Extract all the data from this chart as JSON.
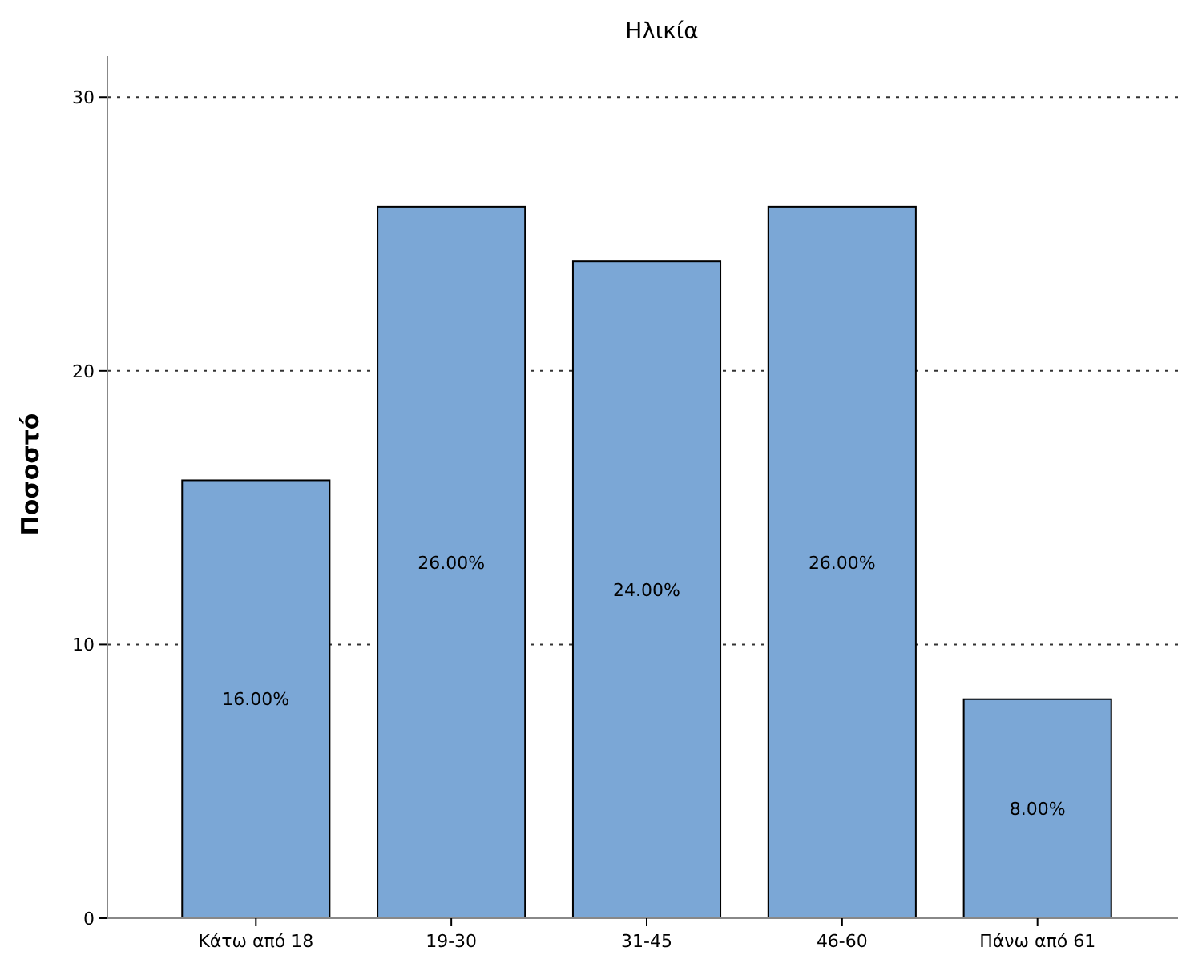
{
  "chart_data": {
    "type": "bar",
    "title": "Ηλικία",
    "ylabel": "Ποσοστό",
    "categories": [
      "Κάτω από 18",
      "19-30",
      "31-45",
      "46-60",
      "Πάνω από 61"
    ],
    "values": [
      16,
      26,
      24,
      26,
      8
    ],
    "value_labels": [
      "16.00%",
      "26.00%",
      "24.00%",
      "26.00%",
      "8.00%"
    ],
    "color": "#7ba7d6",
    "ylim": [
      0,
      31.5
    ],
    "yticks": [
      0,
      10,
      20,
      30
    ],
    "grid": "y"
  }
}
